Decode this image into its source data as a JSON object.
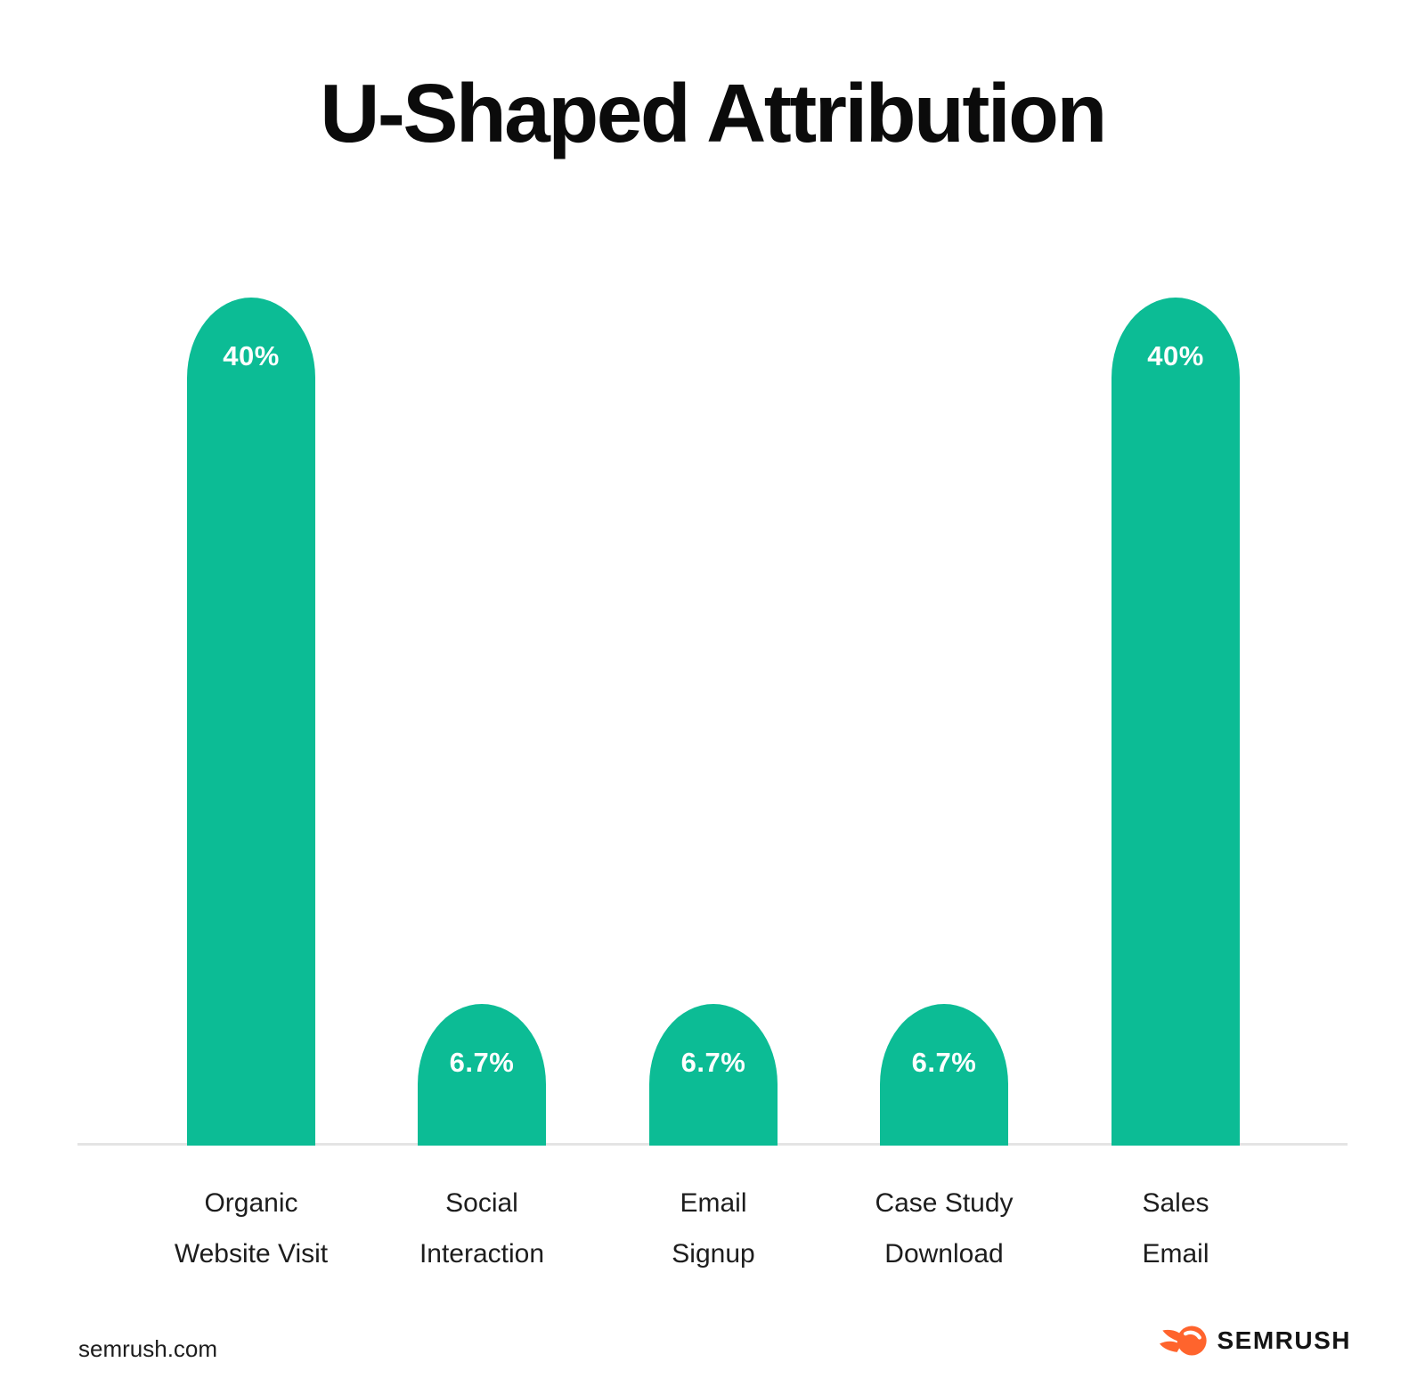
{
  "title": "U-Shaped Attribution",
  "chart_data": {
    "type": "bar",
    "title": "U-Shaped Attribution",
    "categories": [
      "Organic Website Visit",
      "Social Interaction",
      "Email Signup",
      "Case Study Download",
      "Sales Email"
    ],
    "values": [
      40,
      6.7,
      6.7,
      6.7,
      40
    ],
    "value_labels": [
      "40%",
      "6.7%",
      "6.7%",
      "6.7%",
      "40%"
    ],
    "unit": "percent",
    "ylim": [
      0,
      40
    ],
    "grid": false,
    "legend": false,
    "bar_color": "#0cbc95",
    "value_label_color": "#ffffff",
    "baseline_color": "#e4e4e4",
    "bars": [
      {
        "value": 40,
        "value_label": "40%",
        "label_lines": [
          "Organic",
          "Website Visit"
        ]
      },
      {
        "value": 6.7,
        "value_label": "6.7%",
        "label_lines": [
          "Social",
          "Interaction"
        ]
      },
      {
        "value": 6.7,
        "value_label": "6.7%",
        "label_lines": [
          "Email",
          "Signup"
        ]
      },
      {
        "value": 6.7,
        "value_label": "6.7%",
        "label_lines": [
          "Case Study",
          "Download"
        ]
      },
      {
        "value": 40,
        "value_label": "40%",
        "label_lines": [
          "Sales",
          "Email"
        ]
      }
    ]
  },
  "footer": {
    "website": "semrush.com",
    "brand": "SEMRUSH",
    "logo_color": "#ff642d",
    "brand_text_color": "#141414"
  }
}
